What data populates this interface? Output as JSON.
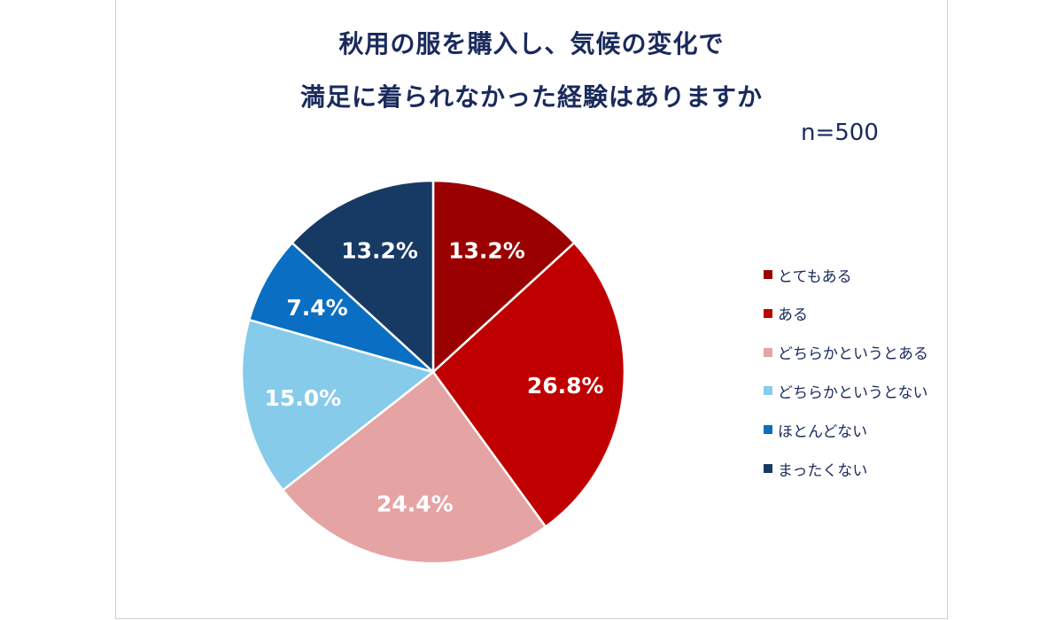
{
  "sample_size_label": "n=500",
  "chart_data": {
    "type": "pie",
    "title": "秋用の服を購入し、気候の変化で\n満足に着られなかった経験はありますか",
    "title_lines": [
      "秋用の服を購入し、気候の変化で",
      "満足に着られなかった経験はありますか"
    ],
    "start_angle_deg": 0,
    "direction": "clockwise",
    "legend_position": "right",
    "slices": [
      {
        "label": "とてもある",
        "value": 13.2,
        "display": "13.2%",
        "color": "#9a0000"
      },
      {
        "label": "ある",
        "value": 26.8,
        "display": "26.8%",
        "color": "#c00000"
      },
      {
        "label": "どちらかというとある",
        "value": 24.4,
        "display": "24.4%",
        "color": "#e6a3a3"
      },
      {
        "label": "どちらかというとない",
        "value": 15.0,
        "display": "15.0%",
        "color": "#87cbeb"
      },
      {
        "label": "ほとんどない",
        "value": 7.4,
        "display": "7.4%",
        "color": "#0a6fc2"
      },
      {
        "label": "まったくない",
        "value": 13.2,
        "display": "13.2%",
        "color": "#173a64"
      }
    ]
  }
}
